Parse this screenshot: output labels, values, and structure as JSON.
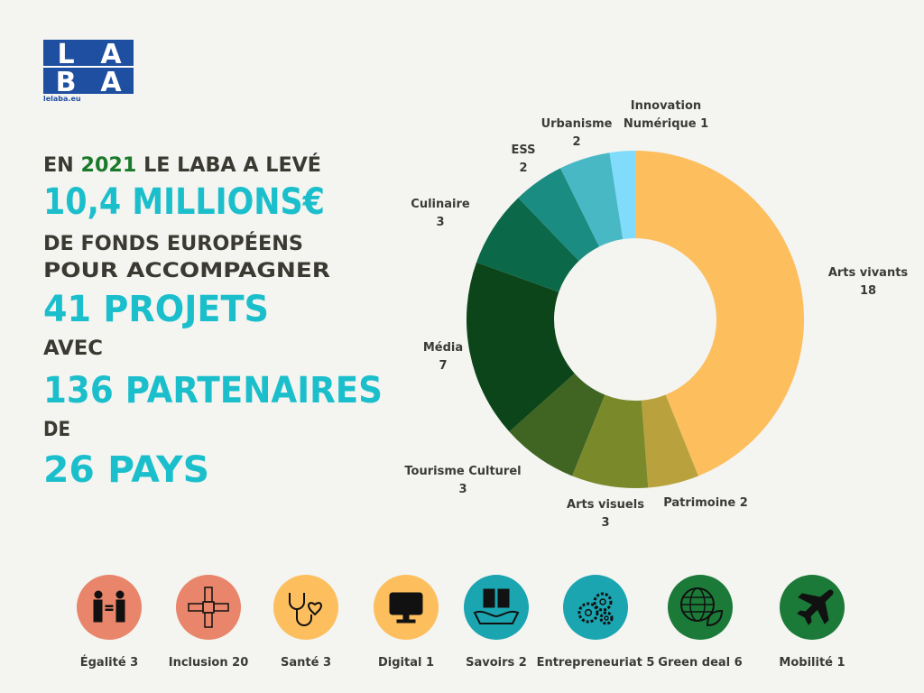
{
  "logo": {
    "letters": [
      "L",
      "A",
      "B",
      "A"
    ],
    "url": "lelaba.eu"
  },
  "headline": {
    "line1_start": "EN",
    "year": "2021",
    "line1_end": "LE LABA A LEVÉ",
    "amount": "10,4 MILLIONS€",
    "line3": "DE FONDS EUROPÉENS",
    "line4": "POUR ACCOMPAGNER",
    "projects": "41 PROJETS",
    "line6": "AVEC",
    "partners": "136 PARTENAIRES",
    "line8": "DE",
    "countries": "26 PAYS"
  },
  "chart_data": {
    "type": "pie",
    "donut": true,
    "categories": [
      "Arts vivants",
      "Patrimoine",
      "Arts visuels",
      "Tourisme Culturel",
      "Média",
      "Culinaire",
      "ESS",
      "Urbanisme",
      "Innovation Numérique"
    ],
    "values": [
      18,
      2,
      3,
      3,
      7,
      3,
      2,
      2,
      1
    ],
    "colors": [
      "#fdbe5e",
      "#b9a23d",
      "#7a8a2b",
      "#406522",
      "#0c4519",
      "#0b6848",
      "#1b8c82",
      "#48b8c4",
      "#80dcfa"
    ]
  },
  "themes": [
    {
      "label": "Égalité 3",
      "color": "#e8856a"
    },
    {
      "label": "Inclusion 20",
      "color": "#e8856a"
    },
    {
      "label": "Santé 3",
      "color": "#fdbe5e"
    },
    {
      "label": "Digital 1",
      "color": "#fdbe5e"
    },
    {
      "label": "Savoirs 2",
      "color": "#1aa5b0"
    },
    {
      "label": "Entrepreneuriat 5",
      "color": "#1aa5b0"
    },
    {
      "label": "Green deal 6",
      "color": "#1b7a38"
    },
    {
      "label": "Mobilité 1",
      "color": "#1b7a38"
    }
  ]
}
